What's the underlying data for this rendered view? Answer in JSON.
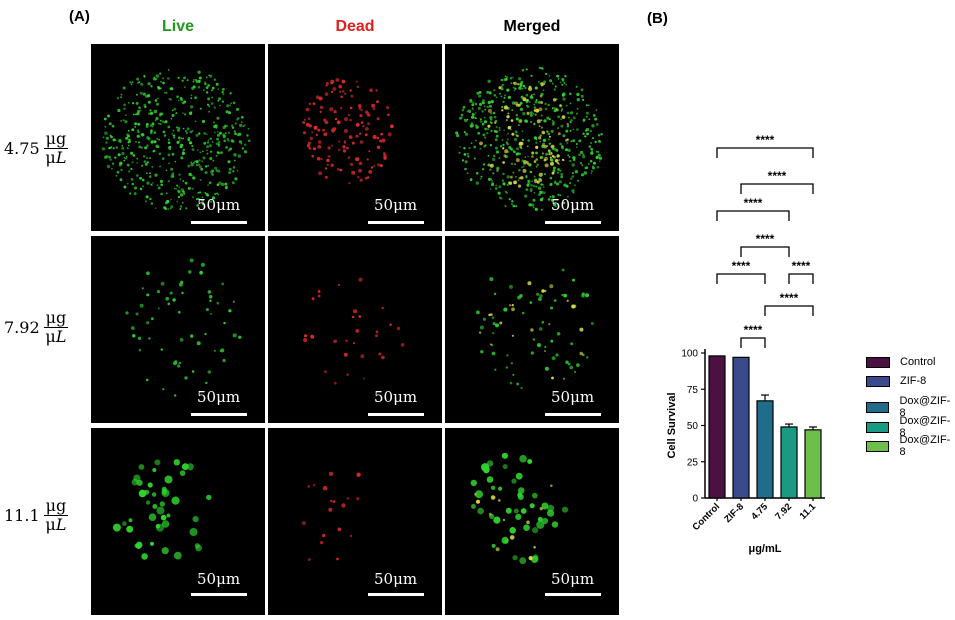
{
  "panel_a_label": "(A)",
  "panel_b_label": "(B)",
  "columns": [
    {
      "label": "Live",
      "color": "#1e9a1e"
    },
    {
      "label": "Dead",
      "color": "#e02020"
    },
    {
      "label": "Merged",
      "color": "#000000"
    }
  ],
  "rows": [
    {
      "value": "4.75",
      "unit_num": "μg",
      "unit_den_mu": "μ",
      "unit_den_l": "L"
    },
    {
      "value": "7.92",
      "unit_num": "μg",
      "unit_den_mu": "μ",
      "unit_den_l": "L"
    },
    {
      "value": "11.1",
      "unit_num": "μg",
      "unit_den_mu": "μ",
      "unit_den_l": "L"
    }
  ],
  "scale_bar_label": "50μm",
  "chart_data": {
    "type": "bar",
    "categories": [
      "Control",
      "ZIF-8",
      "4.75",
      "7.92",
      "11.1"
    ],
    "values": [
      98,
      97,
      67,
      49,
      47
    ],
    "errors": [
      0,
      0,
      4,
      2,
      2
    ],
    "colors": [
      "#4a1142",
      "#3a4a8c",
      "#1f6d8a",
      "#1a9a82",
      "#6dbf4b"
    ],
    "ylabel": "Cell Survival",
    "xlabel": "μg/mL",
    "ylim": [
      0,
      100
    ],
    "yticks": [
      0,
      25,
      50,
      75,
      100
    ],
    "legend": [
      "Control",
      "ZIF-8",
      "Dox@ZIF-8",
      "Dox@ZIF-8",
      "Dox@ZIF-8"
    ],
    "legend_position": "right",
    "significance": [
      {
        "from": 0,
        "to": 4,
        "label": "****"
      },
      {
        "from": 1,
        "to": 4,
        "label": "****"
      },
      {
        "from": 0,
        "to": 3,
        "label": "****"
      },
      {
        "from": 1,
        "to": 3,
        "label": "****"
      },
      {
        "from": 0,
        "to": 2,
        "label": "****"
      },
      {
        "from": 3,
        "to": 4,
        "label": "****"
      },
      {
        "from": 2,
        "to": 4,
        "label": "****"
      },
      {
        "from": 1,
        "to": 2,
        "label": "****"
      }
    ]
  }
}
